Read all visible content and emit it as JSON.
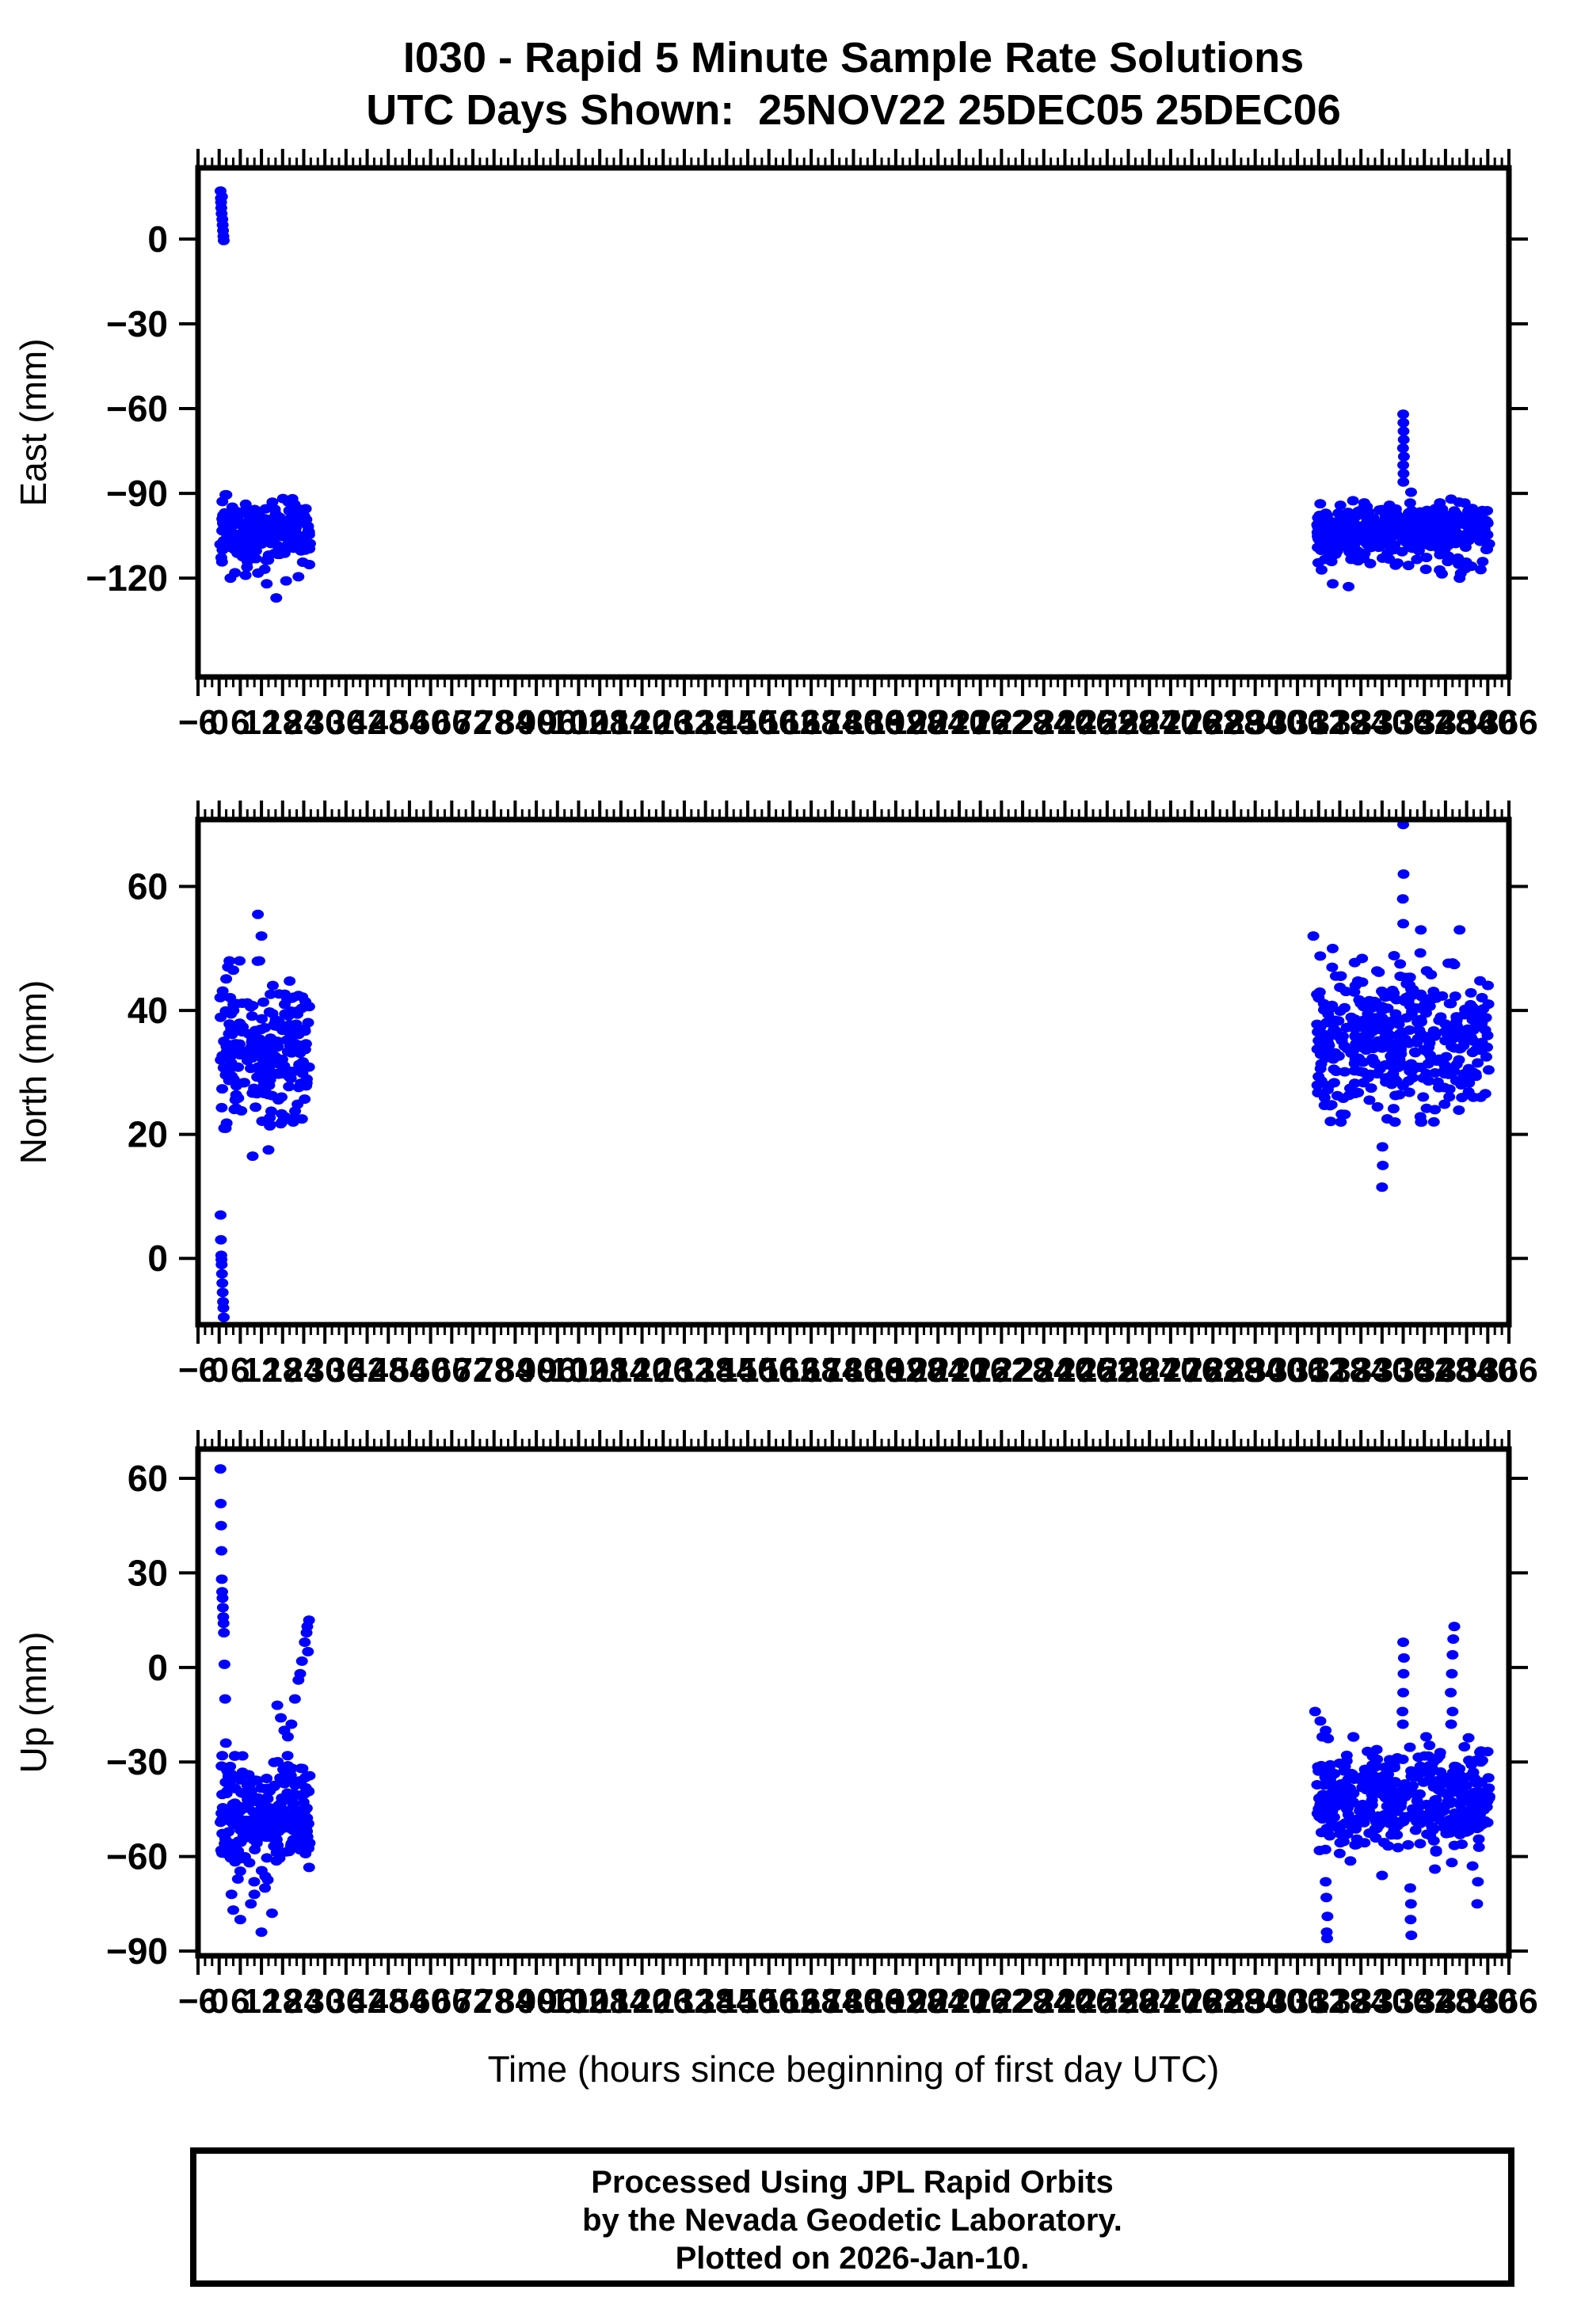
{
  "title": {
    "line1": "I030 - Rapid 5 Minute Sample Rate Solutions",
    "line2": "UTC Days Shown:  25NOV22 25DEC05 25DEC06"
  },
  "station": "I030",
  "utc_days_shown": [
    "25NOV22",
    "25DEC05",
    "25DEC06"
  ],
  "footer": {
    "line1": "Processed Using JPL Rapid Orbits",
    "line2": "by the Nevada Geodetic Laboratory.",
    "line3": "Plotted on 2026-Jan-10."
  },
  "point_color": "#0000ff",
  "frame_color": "#000000",
  "chart_data": {
    "type": "scatter",
    "xlabel": "Time (hours since beginning of first day UTC)",
    "x": {
      "min": -6,
      "max": 366,
      "major_tick": 6,
      "minor_tick": 2,
      "unit": "hours"
    },
    "data_windows_hours": [
      [
        0,
        26
      ],
      [
        311,
        361
      ]
    ],
    "panels": [
      {
        "name": "east",
        "ylabel": "East (mm)",
        "ylim": {
          "top": 25.2,
          "bottom": -155.0
        },
        "yticks": [
          0,
          -30,
          -60,
          -90,
          -120
        ],
        "summary": "Day 1 starts near +17 to 0 mm then jumps to a dense band near -104 mm for hours 0-26; days 13-14 (hours 312-360) sit in the same -104 mm band with an upward excursion to -62 mm at hour 336.",
        "clusters": [
          {
            "t0": 0.3,
            "t1": 25.8,
            "n": 240,
            "mean": -104.0,
            "sd": 5.6,
            "lo": -118.5,
            "hi": -90.5,
            "seed": 11
          },
          {
            "t0": 311.5,
            "t1": 360.5,
            "n": 420,
            "mean": -103.5,
            "sd": 5.2,
            "lo": -119.0,
            "hi": -89.0,
            "seed": 12
          }
        ],
        "points": [
          [
            0.4,
            17
          ],
          [
            0.5,
            14.5
          ],
          [
            0.55,
            13
          ],
          [
            0.6,
            11
          ],
          [
            0.7,
            9
          ],
          [
            0.8,
            15
          ],
          [
            0.9,
            7
          ],
          [
            1.0,
            5
          ],
          [
            1.1,
            3
          ],
          [
            1.2,
            1
          ],
          [
            1.3,
            -0.5
          ],
          [
            16.2,
            -127
          ],
          [
            13.5,
            -122
          ],
          [
            19,
            -121
          ],
          [
            3.2,
            -120
          ],
          [
            22.5,
            -119.5
          ],
          [
            7.5,
            -119
          ],
          [
            336.0,
            -62
          ],
          [
            336.05,
            -65
          ],
          [
            336.1,
            -68
          ],
          [
            336.15,
            -71
          ],
          [
            335.95,
            -74
          ],
          [
            336.2,
            -77
          ],
          [
            336.0,
            -80
          ],
          [
            336.1,
            -83
          ],
          [
            336.05,
            -86
          ],
          [
            316,
            -122
          ],
          [
            320.5,
            -123
          ],
          [
            352,
            -120
          ],
          [
            347,
            -118.5
          ],
          [
            358,
            -117
          ]
        ]
      },
      {
        "name": "north",
        "ylabel": "North (mm)",
        "ylim": {
          "top": 70.8,
          "bottom": -10.7
        },
        "yticks": [
          60,
          40,
          20,
          0
        ],
        "summary": "Day 1 starts near +7 to -10 mm then jumps to a band near +34 mm for hours 0-26; days 13-14 (hours 312-360) sit near +35 mm with excursions to +70 mm at hour 336 and down to +11 mm near hour 330.",
        "clusters": [
          {
            "t0": 0.3,
            "t1": 25.8,
            "n": 240,
            "mean": 33.5,
            "sd": 5.8,
            "lo": 21.0,
            "hi": 48.0,
            "seed": 21
          },
          {
            "t0": 311.5,
            "t1": 360.5,
            "n": 420,
            "mean": 35.0,
            "sd": 5.6,
            "lo": 22.0,
            "hi": 50.0,
            "seed": 22
          }
        ],
        "points": [
          [
            0.4,
            7
          ],
          [
            0.5,
            3
          ],
          [
            0.6,
            0.5
          ],
          [
            0.65,
            -0.2
          ],
          [
            0.7,
            -1
          ],
          [
            0.8,
            -2.5
          ],
          [
            0.9,
            -4
          ],
          [
            1.0,
            -5.5
          ],
          [
            1.1,
            -7
          ],
          [
            1.2,
            -8
          ],
          [
            1.3,
            -9.5
          ],
          [
            11,
            55.5
          ],
          [
            12,
            52
          ],
          [
            9.5,
            16.5
          ],
          [
            14,
            17.5
          ],
          [
            21,
            22
          ],
          [
            23.5,
            22.5
          ],
          [
            2.5,
            47
          ],
          [
            4,
            46.5
          ],
          [
            336,
            70
          ],
          [
            336.1,
            62
          ],
          [
            335.9,
            58
          ],
          [
            336,
            54
          ],
          [
            330,
            11.5
          ],
          [
            330.2,
            15
          ],
          [
            330.1,
            18
          ],
          [
            310.5,
            52
          ],
          [
            352,
            53
          ],
          [
            341,
            53
          ],
          [
            345,
            24
          ],
          [
            358,
            26
          ]
        ]
      },
      {
        "name": "up",
        "ylabel": "Up (mm)",
        "ylim": {
          "top": 69.3,
          "bottom": -91.5
        },
        "yticks": [
          60,
          30,
          0,
          -30,
          -60,
          -90
        ],
        "summary": "Day 1 descends from +63 mm to a broad cloud near -47 mm (hours 0-26) with a rising tail back to +15 mm by hour 26 and dips to -84 mm; days 13-14 (hours 312-360) scatter near -42 mm with streaks up to +13 mm near hours 336 and 350 and down to -86 mm near hours 314 and 338.",
        "clusters": [
          {
            "t0": 0.3,
            "t1": 25.8,
            "n": 240,
            "mean": -47.0,
            "sd": 9.0,
            "lo": -68.0,
            "hi": -28.0,
            "seed": 31
          },
          {
            "t0": 311.5,
            "t1": 360.5,
            "n": 420,
            "mean": -42.0,
            "sd": 8.5,
            "lo": -63.0,
            "hi": -22.0,
            "seed": 32
          }
        ],
        "points": [
          [
            0.35,
            63
          ],
          [
            0.45,
            52
          ],
          [
            0.55,
            45
          ],
          [
            0.65,
            37
          ],
          [
            0.75,
            28
          ],
          [
            0.85,
            24
          ],
          [
            0.95,
            22
          ],
          [
            1.05,
            19
          ],
          [
            1.15,
            16
          ],
          [
            1.25,
            14
          ],
          [
            1.35,
            11
          ],
          [
            1.5,
            1
          ],
          [
            1.7,
            -10
          ],
          [
            1.9,
            -24
          ],
          [
            4,
            -77
          ],
          [
            6,
            -80
          ],
          [
            9,
            -75
          ],
          [
            12,
            -84
          ],
          [
            3.5,
            -72
          ],
          [
            15,
            -78
          ],
          [
            10,
            -72
          ],
          [
            13,
            -70
          ],
          [
            16.5,
            -12
          ],
          [
            17.5,
            -16
          ],
          [
            18.5,
            -20
          ],
          [
            19.5,
            -22
          ],
          [
            20.5,
            -18
          ],
          [
            21.5,
            -10
          ],
          [
            22.5,
            -4
          ],
          [
            23,
            -2
          ],
          [
            23.5,
            2
          ],
          [
            24.3,
            8
          ],
          [
            24.8,
            11
          ],
          [
            25.0,
            13
          ],
          [
            25.2,
            5
          ],
          [
            25.5,
            15
          ],
          [
            335.8,
            -14
          ],
          [
            336,
            -8
          ],
          [
            336.1,
            -2
          ],
          [
            336.2,
            3
          ],
          [
            336.0,
            8
          ],
          [
            335.9,
            -18
          ],
          [
            349.5,
            -8
          ],
          [
            349.8,
            -2
          ],
          [
            350,
            4
          ],
          [
            350.2,
            9
          ],
          [
            350.5,
            13
          ],
          [
            350.0,
            -14
          ],
          [
            349.6,
            -18
          ],
          [
            311,
            -14
          ],
          [
            312.5,
            -17
          ],
          [
            314,
            -20
          ],
          [
            314,
            -68
          ],
          [
            314.2,
            -73
          ],
          [
            314.5,
            -79
          ],
          [
            314.3,
            -84
          ],
          [
            314.4,
            -86
          ],
          [
            338,
            -70
          ],
          [
            338.2,
            -75
          ],
          [
            338.1,
            -80
          ],
          [
            338.3,
            -85
          ],
          [
            330,
            -66
          ],
          [
            345,
            -64
          ],
          [
            357,
            -75
          ],
          [
            357.2,
            -68
          ]
        ]
      }
    ]
  }
}
